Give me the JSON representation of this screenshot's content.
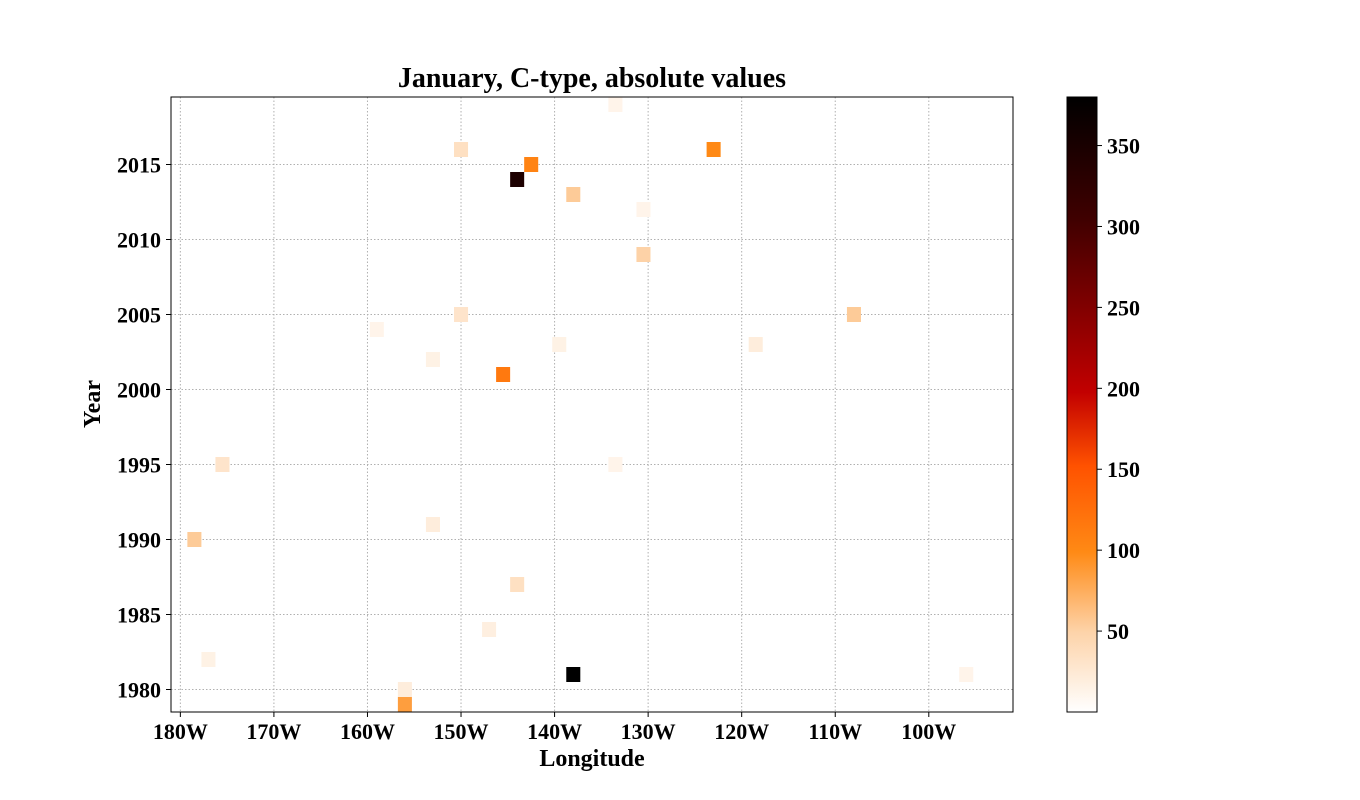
{
  "chart_data": {
    "type": "heatmap",
    "title": "January, C-type, absolute values",
    "xlabel": "Longitude",
    "ylabel": "Year",
    "x_unit": "degrees longitude (negative = W)",
    "xlim": [
      -181,
      -91
    ],
    "ylim": [
      1978.5,
      2019.5
    ],
    "x_ticks": [
      -180,
      -170,
      -160,
      -150,
      -140,
      -130,
      -120,
      -110,
      -100
    ],
    "x_tick_labels": [
      "180W",
      "170W",
      "160W",
      "150W",
      "140W",
      "130W",
      "120W",
      "110W",
      "100W"
    ],
    "y_ticks": [
      1980,
      1985,
      1990,
      1995,
      2000,
      2005,
      2010,
      2015
    ],
    "y_tick_labels": [
      "1980",
      "1985",
      "1990",
      "1995",
      "2000",
      "2005",
      "2010",
      "2015"
    ],
    "grid": true,
    "colorbar": {
      "colormap": "gist_heat_r",
      "range": [
        0,
        380
      ],
      "ticks": [
        50,
        100,
        150,
        200,
        250,
        300,
        350
      ],
      "tick_labels": [
        "50",
        "100",
        "150",
        "200",
        "250",
        "300",
        "350"
      ]
    },
    "cells": [
      {
        "lon": -133.5,
        "year": 2019,
        "value": 12
      },
      {
        "lon": -150,
        "year": 2016,
        "value": 35
      },
      {
        "lon": -123,
        "year": 2016,
        "value": 100
      },
      {
        "lon": -142.5,
        "year": 2015,
        "value": 105
      },
      {
        "lon": -144,
        "year": 2014,
        "value": 345
      },
      {
        "lon": -138,
        "year": 2013,
        "value": 55
      },
      {
        "lon": -130.5,
        "year": 2012,
        "value": 12
      },
      {
        "lon": -130.5,
        "year": 2009,
        "value": 50
      },
      {
        "lon": -150,
        "year": 2005,
        "value": 30
      },
      {
        "lon": -108,
        "year": 2005,
        "value": 55
      },
      {
        "lon": -159,
        "year": 2004,
        "value": 12
      },
      {
        "lon": -139.5,
        "year": 2003,
        "value": 15
      },
      {
        "lon": -118.5,
        "year": 2003,
        "value": 20
      },
      {
        "lon": -153,
        "year": 2002,
        "value": 15
      },
      {
        "lon": -145.5,
        "year": 2001,
        "value": 115
      },
      {
        "lon": -175.5,
        "year": 1995,
        "value": 30
      },
      {
        "lon": -133.5,
        "year": 1995,
        "value": 12
      },
      {
        "lon": -153,
        "year": 1991,
        "value": 20
      },
      {
        "lon": -178.5,
        "year": 1990,
        "value": 55
      },
      {
        "lon": -144,
        "year": 1987,
        "value": 35
      },
      {
        "lon": -147,
        "year": 1984,
        "value": 18
      },
      {
        "lon": -177,
        "year": 1982,
        "value": 15
      },
      {
        "lon": -138,
        "year": 1981,
        "value": 380
      },
      {
        "lon": -96,
        "year": 1981,
        "value": 12
      },
      {
        "lon": -156,
        "year": 1980,
        "value": 20
      },
      {
        "lon": -156,
        "year": 1979,
        "value": 85
      }
    ]
  }
}
